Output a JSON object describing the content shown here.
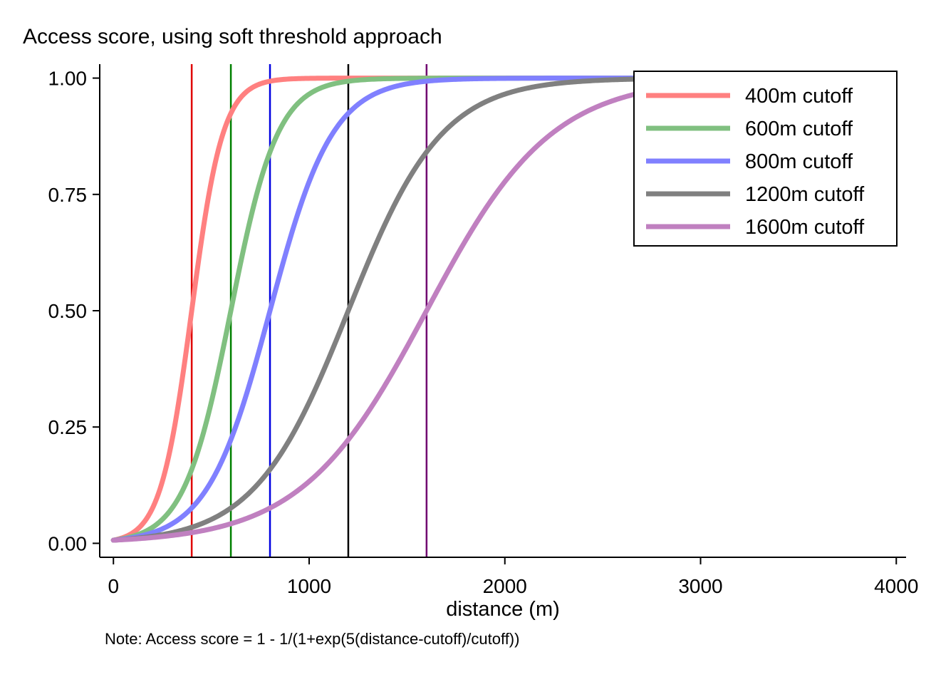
{
  "chart_data": {
    "type": "line",
    "title": "Access score, using soft threshold approach",
    "xlabel": "distance (m)",
    "ylabel": "",
    "note": "Note: Access score = 1 - 1/(1+exp(5(distance-cutoff)/cutoff))",
    "xlim": [
      -70,
      4050
    ],
    "ylim": [
      -0.03,
      1.03
    ],
    "x_ticks": [
      0,
      1000,
      2000,
      3000,
      4000
    ],
    "x_tick_labels": [
      "0",
      "1000",
      "2000",
      "3000",
      "4000"
    ],
    "y_ticks": [
      0,
      0.25,
      0.5,
      0.75,
      1.0
    ],
    "y_tick_labels": [
      "0.00",
      "0.25",
      "0.50",
      "0.75",
      "1.00"
    ],
    "x_range": [
      0,
      3410
    ],
    "formula_k": 5,
    "legend_position": "top-right",
    "grid": false,
    "series": [
      {
        "name": "400m cutoff",
        "cutoff": 400,
        "color": "#ff8080",
        "vline_color": "#e00000"
      },
      {
        "name": "600m cutoff",
        "cutoff": 600,
        "color": "#80c080",
        "vline_color": "#008000"
      },
      {
        "name": "800m cutoff",
        "cutoff": 800,
        "color": "#8080ff",
        "vline_color": "#0000e0"
      },
      {
        "name": "1200m cutoff",
        "cutoff": 1200,
        "color": "#808080",
        "vline_color": "#000000"
      },
      {
        "name": "1600m cutoff",
        "cutoff": 1600,
        "color": "#c080c0",
        "vline_color": "#700070"
      }
    ]
  }
}
